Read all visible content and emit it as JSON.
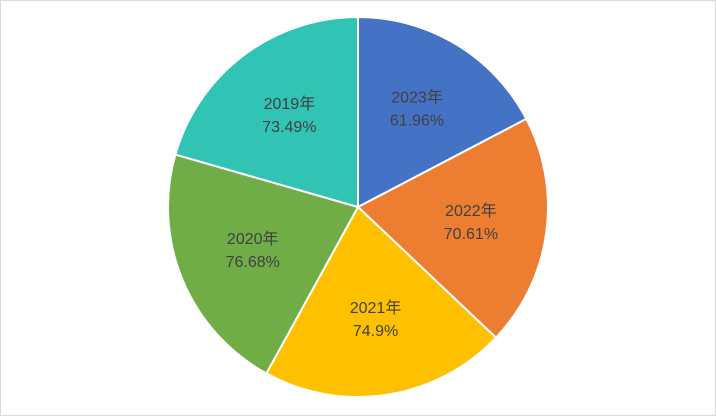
{
  "chart_data": {
    "type": "pie",
    "categories": [
      "2023年",
      "2022年",
      "2021年",
      "2020年",
      "2019年"
    ],
    "values": [
      61.96,
      70.61,
      74.9,
      76.68,
      73.49
    ],
    "value_labels": [
      "61.96%",
      "70.61%",
      "74.9%",
      "76.68%",
      "73.49%"
    ],
    "colors": [
      "#4472c4",
      "#ed7d31",
      "#ffc000",
      "#70ad47",
      "#31c3b4"
    ]
  }
}
